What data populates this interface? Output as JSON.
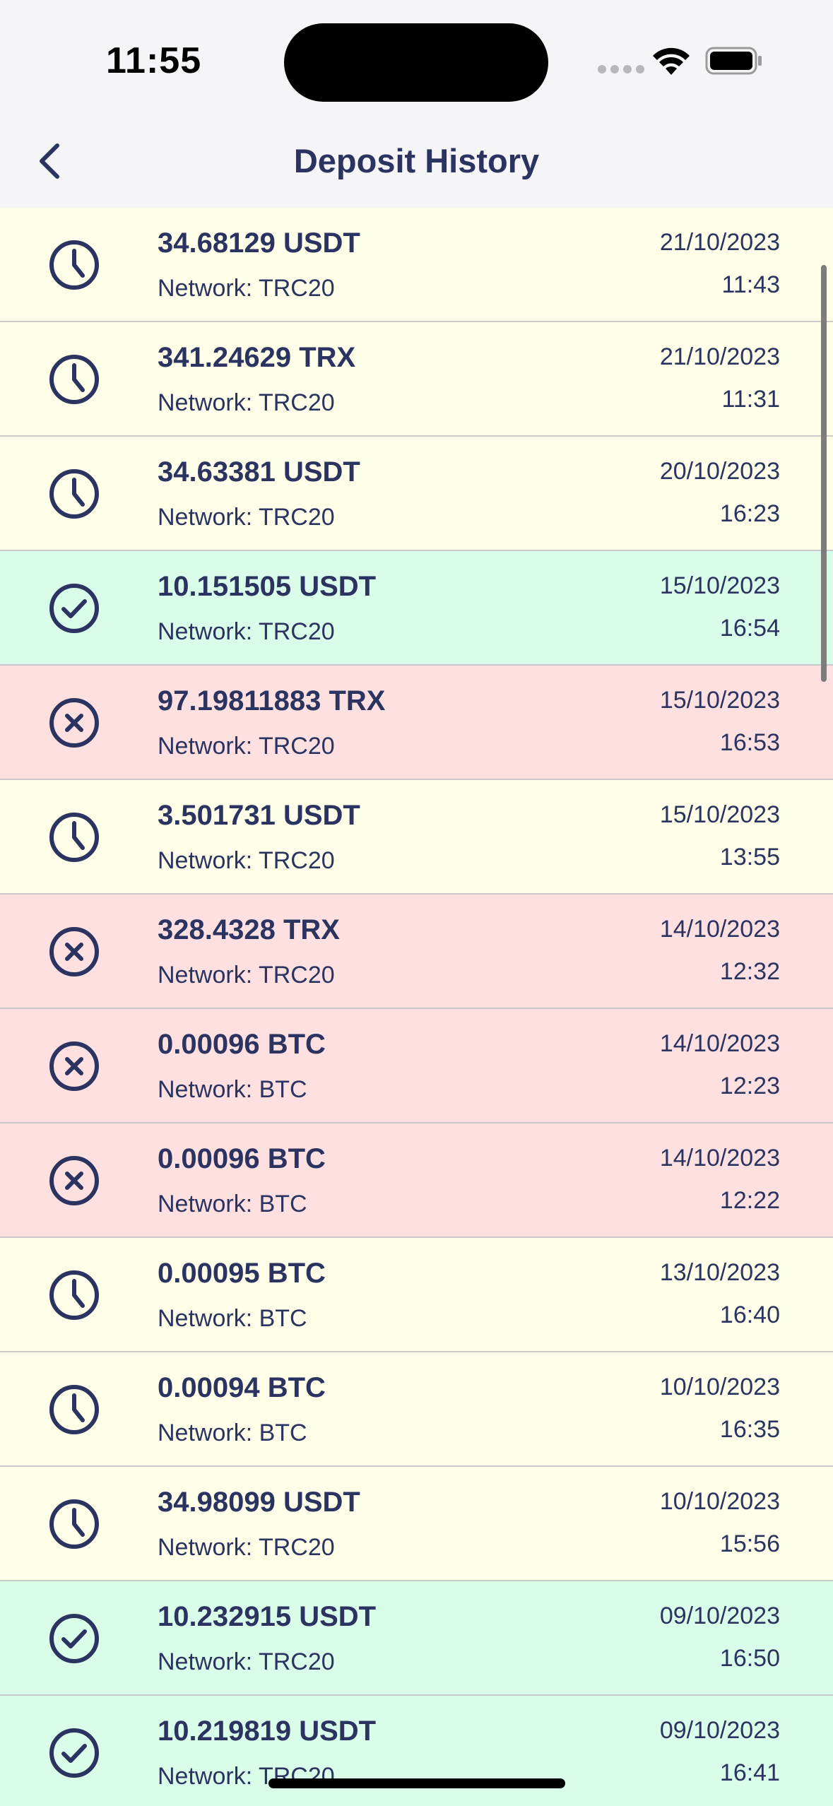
{
  "status_bar": {
    "time": "11:55"
  },
  "header": {
    "title": "Deposit History",
    "back_icon": "chevron-left-icon"
  },
  "colors": {
    "pending_bg": "#fefee9",
    "success_bg": "#d9fde9",
    "failed_bg": "#fee0e0",
    "text": "#2b3360"
  },
  "deposits": [
    {
      "status": "pending",
      "icon": "clock-icon",
      "amount": "34.68129 USDT",
      "network": "Network: TRC20",
      "date": "21/10/2023",
      "time": "11:43"
    },
    {
      "status": "pending",
      "icon": "clock-icon",
      "amount": "341.24629 TRX",
      "network": "Network: TRC20",
      "date": "21/10/2023",
      "time": "11:31"
    },
    {
      "status": "pending",
      "icon": "clock-icon",
      "amount": "34.63381 USDT",
      "network": "Network: TRC20",
      "date": "20/10/2023",
      "time": "16:23"
    },
    {
      "status": "success",
      "icon": "check-circle-icon",
      "amount": "10.151505 USDT",
      "network": "Network: TRC20",
      "date": "15/10/2023",
      "time": "16:54"
    },
    {
      "status": "failed",
      "icon": "x-circle-icon",
      "amount": "97.19811883 TRX",
      "network": "Network: TRC20",
      "date": "15/10/2023",
      "time": "16:53"
    },
    {
      "status": "pending",
      "icon": "clock-icon",
      "amount": "3.501731 USDT",
      "network": "Network: TRC20",
      "date": "15/10/2023",
      "time": "13:55"
    },
    {
      "status": "failed",
      "icon": "x-circle-icon",
      "amount": "328.4328 TRX",
      "network": "Network: TRC20",
      "date": "14/10/2023",
      "time": "12:32"
    },
    {
      "status": "failed",
      "icon": "x-circle-icon",
      "amount": "0.00096 BTC",
      "network": "Network: BTC",
      "date": "14/10/2023",
      "time": "12:23"
    },
    {
      "status": "failed",
      "icon": "x-circle-icon",
      "amount": "0.00096 BTC",
      "network": "Network: BTC",
      "date": "14/10/2023",
      "time": "12:22"
    },
    {
      "status": "pending",
      "icon": "clock-icon",
      "amount": "0.00095 BTC",
      "network": "Network: BTC",
      "date": "13/10/2023",
      "time": "16:40"
    },
    {
      "status": "pending",
      "icon": "clock-icon",
      "amount": "0.00094 BTC",
      "network": "Network: BTC",
      "date": "10/10/2023",
      "time": "16:35"
    },
    {
      "status": "pending",
      "icon": "clock-icon",
      "amount": "34.98099 USDT",
      "network": "Network: TRC20",
      "date": "10/10/2023",
      "time": "15:56"
    },
    {
      "status": "success",
      "icon": "check-circle-icon",
      "amount": "10.232915 USDT",
      "network": "Network: TRC20",
      "date": "09/10/2023",
      "time": "16:50"
    },
    {
      "status": "success",
      "icon": "check-circle-icon",
      "amount": "10.219819 USDT",
      "network": "Network: TRC20",
      "date": "09/10/2023",
      "time": "16:41"
    }
  ]
}
